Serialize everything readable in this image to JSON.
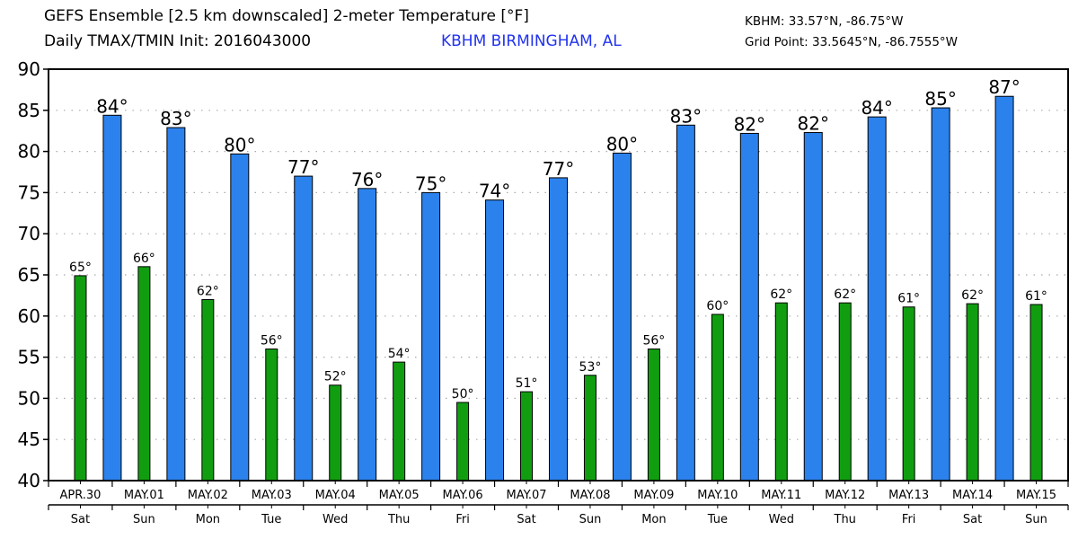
{
  "header": {
    "title_line1": "GEFS Ensemble [2.5 km downscaled] 2-meter Temperature [°F]",
    "title_line2": "Daily TMAX/TMIN Init: 2016043000",
    "station": "KBHM BIRMINGHAM, AL",
    "station_coords": "KBHM: 33.57°N, -86.75°W",
    "grid_point": "Grid Point: 33.5645°N, -86.7555°W"
  },
  "colors": {
    "tmax": "#2b82ed",
    "tmin": "#109e10",
    "station_text": "#2233ee",
    "grid": "#aaaaaa"
  },
  "chart_data": {
    "type": "bar",
    "title": "GEFS Ensemble [2.5 km downscaled] 2-meter Temperature [°F]",
    "subtitle": "Daily TMAX/TMIN Init: 2016043000",
    "xlabel": "",
    "ylabel": "",
    "ylim": [
      40,
      90
    ],
    "yticks": [
      40,
      45,
      50,
      55,
      60,
      65,
      70,
      75,
      80,
      85,
      90
    ],
    "grid": true,
    "legend": "none",
    "categories": [
      "APR.30",
      "MAY.01",
      "MAY.02",
      "MAY.03",
      "MAY.04",
      "MAY.05",
      "MAY.06",
      "MAY.07",
      "MAY.08",
      "MAY.09",
      "MAY.10",
      "MAY.11",
      "MAY.12",
      "MAY.13",
      "MAY.14",
      "MAY.15"
    ],
    "weekdays": [
      "Sat",
      "Sun",
      "Mon",
      "Tue",
      "Wed",
      "Thu",
      "Fri",
      "Sat",
      "Sun",
      "Mon",
      "Tue",
      "Wed",
      "Thu",
      "Fri",
      "Sat",
      "Sun"
    ],
    "series": [
      {
        "name": "TMIN",
        "position": "day-center",
        "values": [
          64.9,
          66.0,
          62.0,
          56.0,
          51.6,
          54.4,
          49.5,
          50.8,
          52.8,
          56.0,
          60.2,
          61.6,
          61.6,
          61.1,
          61.5,
          61.4
        ],
        "labels": [
          "65°",
          "66°",
          "62°",
          "56°",
          "52°",
          "54°",
          "50°",
          "51°",
          "53°",
          "56°",
          "60°",
          "62°",
          "62°",
          "61°",
          "62°",
          "61°"
        ]
      },
      {
        "name": "TMAX",
        "position": "day-boundary-after",
        "values": [
          84.4,
          82.9,
          79.7,
          77.0,
          75.5,
          75.0,
          74.1,
          76.8,
          79.8,
          83.2,
          82.2,
          82.3,
          84.2,
          85.3,
          86.7
        ],
        "labels": [
          "84°",
          "83°",
          "80°",
          "77°",
          "76°",
          "75°",
          "74°",
          "77°",
          "80°",
          "83°",
          "82°",
          "82°",
          "84°",
          "85°",
          "87°"
        ]
      }
    ]
  }
}
